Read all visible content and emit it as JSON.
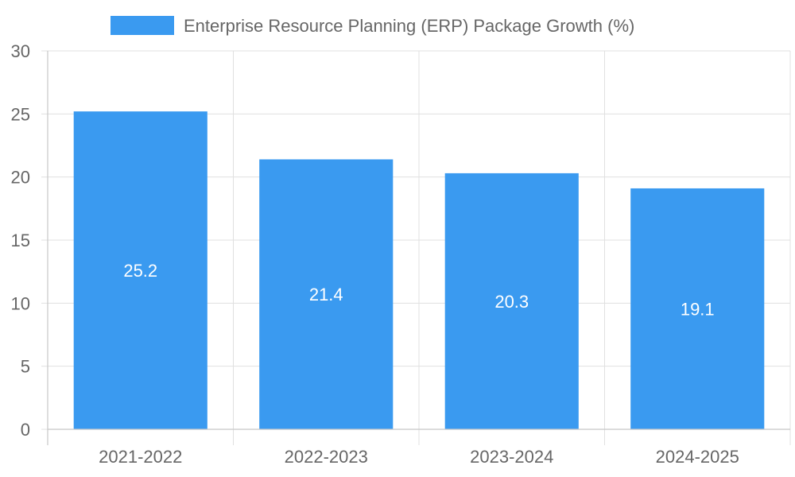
{
  "chart_data": {
    "type": "bar",
    "categories": [
      "2021-2022",
      "2022-2023",
      "2023-2024",
      "2024-2025"
    ],
    "series": [
      {
        "name": "Enterprise Resource Planning (ERP) Package Growth (%)",
        "values": [
          25.2,
          21.4,
          20.3,
          19.1
        ],
        "color": "#3a9af0"
      }
    ],
    "value_labels": [
      "25.2",
      "21.4",
      "20.3",
      "19.1"
    ],
    "ylim": [
      0,
      30
    ],
    "yticks": [
      "0",
      "5",
      "10",
      "15",
      "20",
      "25",
      "30"
    ],
    "grid": true,
    "legend_position": "top-center",
    "title": "",
    "xlabel": "",
    "ylabel": ""
  }
}
